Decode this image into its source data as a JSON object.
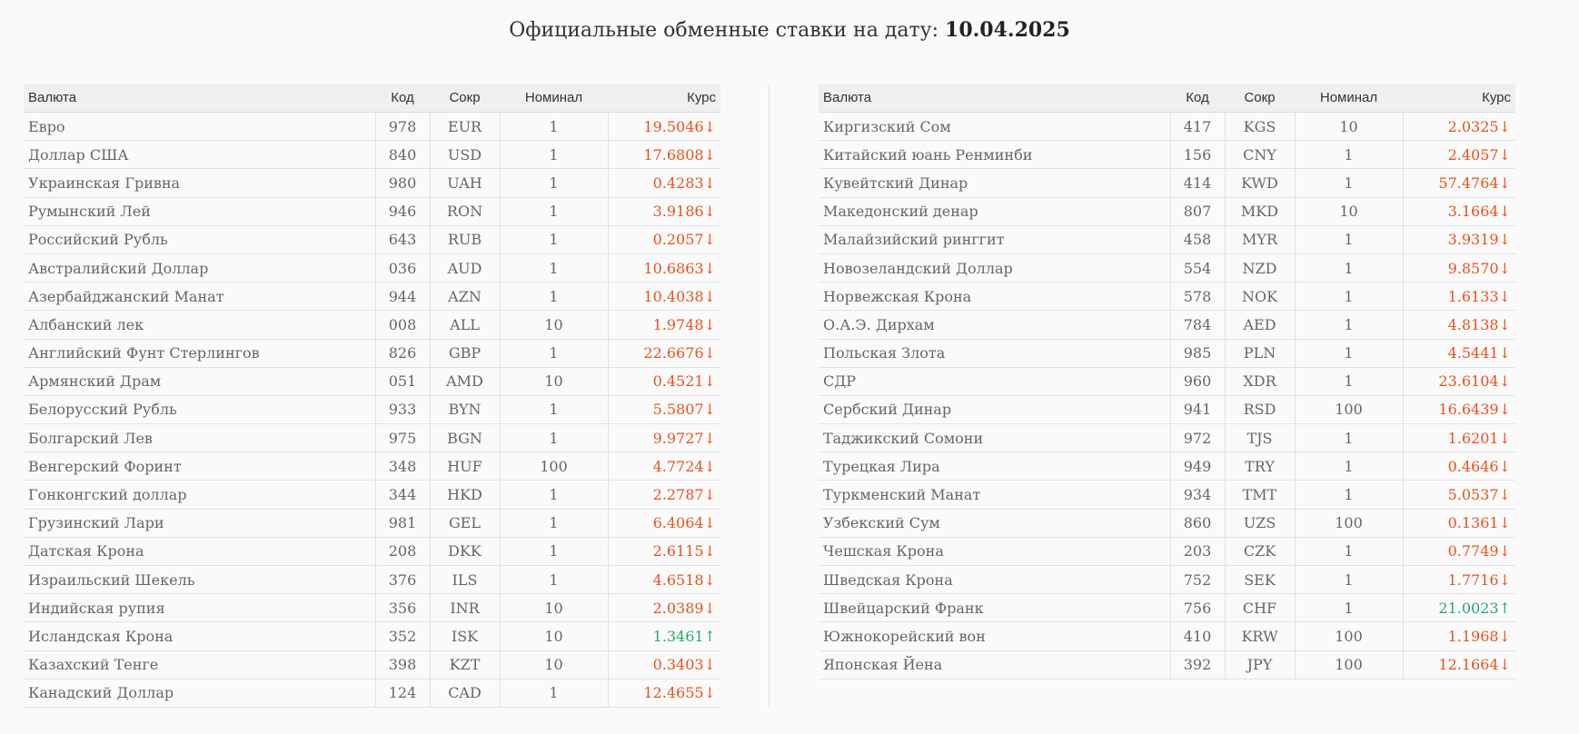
{
  "header": {
    "title_prefix": "Официальные обменные ставки на дату:",
    "date": "10.04.2025"
  },
  "columns": {
    "name": "Валюта",
    "code": "Код",
    "abbr": "Сокр",
    "nominal": "Номинал",
    "rate": "Курс"
  },
  "colors": {
    "down": "#e8531e",
    "up": "#2aa86a"
  },
  "left_table": [
    {
      "name": "Евро",
      "code": "978",
      "abbr": "EUR",
      "nominal": "1",
      "rate": "19.5046",
      "trend": "down"
    },
    {
      "name": "Доллар США",
      "code": "840",
      "abbr": "USD",
      "nominal": "1",
      "rate": "17.6808",
      "trend": "down"
    },
    {
      "name": "Украинская Гривна",
      "code": "980",
      "abbr": "UAH",
      "nominal": "1",
      "rate": "0.4283",
      "trend": "down"
    },
    {
      "name": "Румынский Лей",
      "code": "946",
      "abbr": "RON",
      "nominal": "1",
      "rate": "3.9186",
      "trend": "down"
    },
    {
      "name": "Российский Рубль",
      "code": "643",
      "abbr": "RUB",
      "nominal": "1",
      "rate": "0.2057",
      "trend": "down"
    },
    {
      "name": "Австралийский Доллар",
      "code": "036",
      "abbr": "AUD",
      "nominal": "1",
      "rate": "10.6863",
      "trend": "down"
    },
    {
      "name": "Азербайджанский Манат",
      "code": "944",
      "abbr": "AZN",
      "nominal": "1",
      "rate": "10.4038",
      "trend": "down"
    },
    {
      "name": "Албанский лек",
      "code": "008",
      "abbr": "ALL",
      "nominal": "10",
      "rate": "1.9748",
      "trend": "down"
    },
    {
      "name": "Английский Фунт Стерлингов",
      "code": "826",
      "abbr": "GBP",
      "nominal": "1",
      "rate": "22.6676",
      "trend": "down"
    },
    {
      "name": "Армянский Драм",
      "code": "051",
      "abbr": "AMD",
      "nominal": "10",
      "rate": "0.4521",
      "trend": "down"
    },
    {
      "name": "Белорусский Рубль",
      "code": "933",
      "abbr": "BYN",
      "nominal": "1",
      "rate": "5.5807",
      "trend": "down"
    },
    {
      "name": "Болгарский Лев",
      "code": "975",
      "abbr": "BGN",
      "nominal": "1",
      "rate": "9.9727",
      "trend": "down"
    },
    {
      "name": "Венгерский Форинт",
      "code": "348",
      "abbr": "HUF",
      "nominal": "100",
      "rate": "4.7724",
      "trend": "down"
    },
    {
      "name": "Гонконгский доллар",
      "code": "344",
      "abbr": "HKD",
      "nominal": "1",
      "rate": "2.2787",
      "trend": "down"
    },
    {
      "name": "Грузинский Лари",
      "code": "981",
      "abbr": "GEL",
      "nominal": "1",
      "rate": "6.4064",
      "trend": "down"
    },
    {
      "name": "Датская Крона",
      "code": "208",
      "abbr": "DKK",
      "nominal": "1",
      "rate": "2.6115",
      "trend": "down"
    },
    {
      "name": "Израильский Шекель",
      "code": "376",
      "abbr": "ILS",
      "nominal": "1",
      "rate": "4.6518",
      "trend": "down"
    },
    {
      "name": "Индийская рупия",
      "code": "356",
      "abbr": "INR",
      "nominal": "10",
      "rate": "2.0389",
      "trend": "down"
    },
    {
      "name": "Исландская Крона",
      "code": "352",
      "abbr": "ISK",
      "nominal": "10",
      "rate": "1.3461",
      "trend": "up"
    },
    {
      "name": "Казахский Тенге",
      "code": "398",
      "abbr": "KZT",
      "nominal": "10",
      "rate": "0.3403",
      "trend": "down"
    },
    {
      "name": "Канадский Доллар",
      "code": "124",
      "abbr": "CAD",
      "nominal": "1",
      "rate": "12.4655",
      "trend": "down"
    }
  ],
  "right_table": [
    {
      "name": "Киргизский Сом",
      "code": "417",
      "abbr": "KGS",
      "nominal": "10",
      "rate": "2.0325",
      "trend": "down"
    },
    {
      "name": "Китайский юань Ренминби",
      "code": "156",
      "abbr": "CNY",
      "nominal": "1",
      "rate": "2.4057",
      "trend": "down"
    },
    {
      "name": "Кувейтский Динар",
      "code": "414",
      "abbr": "KWD",
      "nominal": "1",
      "rate": "57.4764",
      "trend": "down"
    },
    {
      "name": "Македонский денар",
      "code": "807",
      "abbr": "MKD",
      "nominal": "10",
      "rate": "3.1664",
      "trend": "down"
    },
    {
      "name": "Малайзийский ринггит",
      "code": "458",
      "abbr": "MYR",
      "nominal": "1",
      "rate": "3.9319",
      "trend": "down"
    },
    {
      "name": "Новозеландский Доллар",
      "code": "554",
      "abbr": "NZD",
      "nominal": "1",
      "rate": "9.8570",
      "trend": "down"
    },
    {
      "name": "Норвежская Крона",
      "code": "578",
      "abbr": "NOK",
      "nominal": "1",
      "rate": "1.6133",
      "trend": "down"
    },
    {
      "name": "О.А.Э. Дирхам",
      "code": "784",
      "abbr": "AED",
      "nominal": "1",
      "rate": "4.8138",
      "trend": "down"
    },
    {
      "name": "Польская Злота",
      "code": "985",
      "abbr": "PLN",
      "nominal": "1",
      "rate": "4.5441",
      "trend": "down"
    },
    {
      "name": "СДР",
      "code": "960",
      "abbr": "XDR",
      "nominal": "1",
      "rate": "23.6104",
      "trend": "down"
    },
    {
      "name": "Сербский Динар",
      "code": "941",
      "abbr": "RSD",
      "nominal": "100",
      "rate": "16.6439",
      "trend": "down"
    },
    {
      "name": "Таджикский Сомони",
      "code": "972",
      "abbr": "TJS",
      "nominal": "1",
      "rate": "1.6201",
      "trend": "down"
    },
    {
      "name": "Турецкая Лира",
      "code": "949",
      "abbr": "TRY",
      "nominal": "1",
      "rate": "0.4646",
      "trend": "down"
    },
    {
      "name": "Туркменский Манат",
      "code": "934",
      "abbr": "TMT",
      "nominal": "1",
      "rate": "5.0537",
      "trend": "down"
    },
    {
      "name": "Узбекский Сум",
      "code": "860",
      "abbr": "UZS",
      "nominal": "100",
      "rate": "0.1361",
      "trend": "down"
    },
    {
      "name": "Чешская Крона",
      "code": "203",
      "abbr": "CZK",
      "nominal": "1",
      "rate": "0.7749",
      "trend": "down"
    },
    {
      "name": "Шведская Крона",
      "code": "752",
      "abbr": "SEK",
      "nominal": "1",
      "rate": "1.7716",
      "trend": "down"
    },
    {
      "name": "Швейцарский Франк",
      "code": "756",
      "abbr": "CHF",
      "nominal": "1",
      "rate": "21.0023",
      "trend": "up"
    },
    {
      "name": "Южнокорейский вон",
      "code": "410",
      "abbr": "KRW",
      "nominal": "100",
      "rate": "1.1968",
      "trend": "down"
    },
    {
      "name": "Японская Йена",
      "code": "392",
      "abbr": "JPY",
      "nominal": "100",
      "rate": "12.1664",
      "trend": "down"
    }
  ]
}
